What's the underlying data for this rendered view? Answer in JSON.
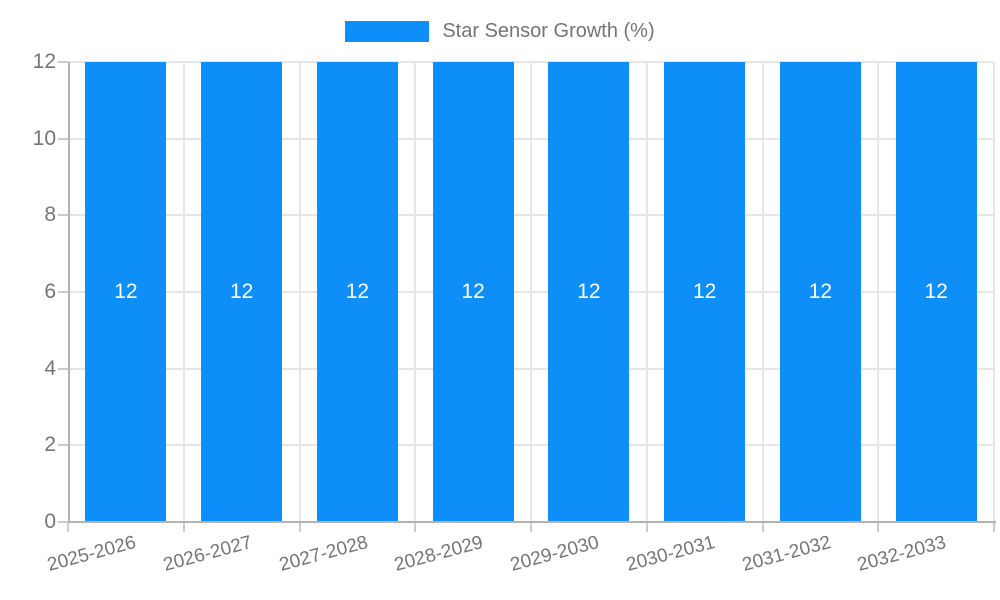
{
  "legend": {
    "label": "Star Sensor Growth (%)",
    "swatch_color": "#0d8ef8"
  },
  "chart_data": {
    "type": "bar",
    "title": "Star Sensor Growth (%)",
    "categories": [
      "2025-2026",
      "2026-2027",
      "2027-2028",
      "2028-2029",
      "2029-2030",
      "2030-2031",
      "2031-2032",
      "2032-2033"
    ],
    "values": [
      12,
      12,
      12,
      12,
      12,
      12,
      12,
      12
    ],
    "value_labels": [
      "12",
      "12",
      "12",
      "12",
      "12",
      "12",
      "12",
      "12"
    ],
    "xlabel": "",
    "ylabel": "",
    "ylim": [
      0,
      12
    ],
    "yticks": [
      0,
      2,
      4,
      6,
      8,
      10,
      12
    ],
    "grid": true,
    "legend_position": "top-center",
    "x_label_rotation_deg": -15,
    "bar_color": "#0d8ef8",
    "value_label_position": "center"
  },
  "colors": {
    "bar": "#0d8ef8",
    "grid": "#e6e6e6",
    "axis": "#b3b3b3",
    "tick": "#cccccc",
    "text": "#757575",
    "bar_label": "#ffffff",
    "background": "#ffffff"
  }
}
